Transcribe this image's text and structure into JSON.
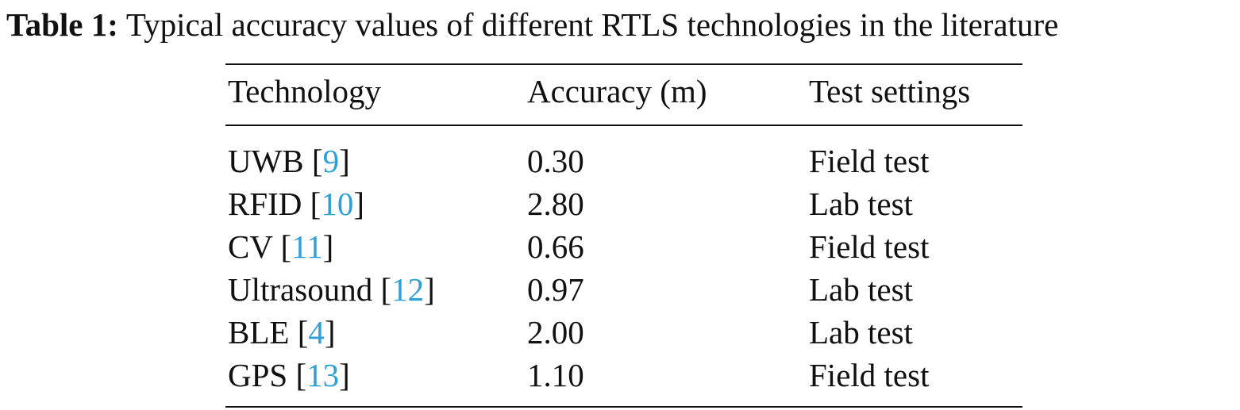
{
  "caption": {
    "label": "Table 1:",
    "text": "Typical accuracy values of different RTLS technologies in the literature"
  },
  "table": {
    "headers": [
      "Technology",
      "Accuracy (m)",
      "Test settings"
    ],
    "rows": [
      {
        "name": "UWB",
        "ref": "9",
        "accuracy": "0.30",
        "setting": "Field test"
      },
      {
        "name": "RFID",
        "ref": "10",
        "accuracy": "2.80",
        "setting": "Lab test"
      },
      {
        "name": "CV",
        "ref": "11",
        "accuracy": "0.66",
        "setting": "Field test"
      },
      {
        "name": "Ultrasound",
        "ref": "12",
        "accuracy": "0.97",
        "setting": "Lab test"
      },
      {
        "name": "BLE",
        "ref": "4",
        "accuracy": "2.00",
        "setting": "Lab test"
      },
      {
        "name": "GPS",
        "ref": "13",
        "accuracy": "1.10",
        "setting": "Field test"
      }
    ]
  },
  "colors": {
    "text": "#111111",
    "citation": "#2f9fd8"
  }
}
